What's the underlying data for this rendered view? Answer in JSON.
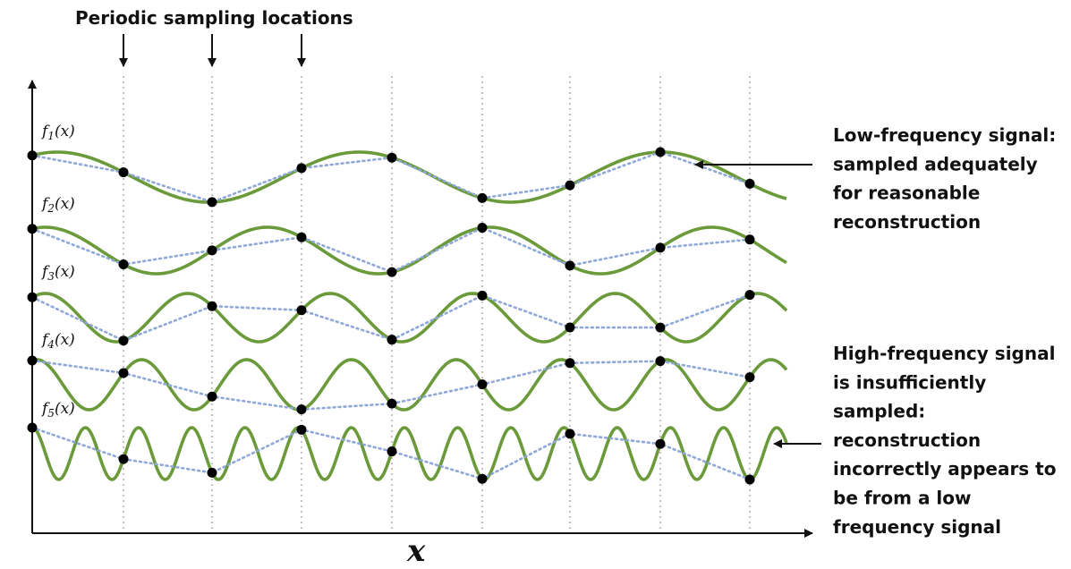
{
  "title": "Periodic sampling locations",
  "x_axis_label": "x",
  "colors": {
    "signal": "#6a9a3a",
    "reconstruction": "#8fa8d8",
    "sample": "#000000",
    "grid": "#9a9a9a",
    "axis": "#111111"
  },
  "sampling_arrow_count": 3,
  "signals": [
    {
      "label_main": "f",
      "label_sub": "1",
      "label_tail": "(x)",
      "cycles": 2.5
    },
    {
      "label_main": "f",
      "label_sub": "2",
      "label_tail": "(x)",
      "cycles": 3.4
    },
    {
      "label_main": "f",
      "label_sub": "3",
      "label_tail": "(x)",
      "cycles": 5.3
    },
    {
      "label_main": "f",
      "label_sub": "4",
      "label_tail": "(x)",
      "cycles": 7.2
    },
    {
      "label_main": "f",
      "label_sub": "5",
      "label_tail": "(x)",
      "cycles": 14.2
    }
  ],
  "annotations": {
    "low": {
      "lines": [
        "Low-frequency signal:",
        "sampled adequately",
        "for reasonable",
        "reconstruction"
      ]
    },
    "high": {
      "lines": [
        "High-frequency signal",
        "is insufficiently",
        "sampled:",
        "reconstruction",
        "incorrectly appears to",
        "be from a low",
        "frequency signal"
      ]
    }
  }
}
